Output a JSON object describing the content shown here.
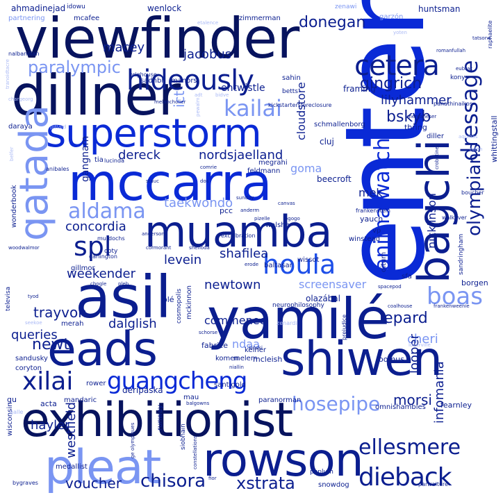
{
  "words": {
    "enten": "enten",
    "viewfinder": "viewfinder",
    "dillner": "dillner",
    "superstorm": "superstorm",
    "mccarra": "mccarra",
    "muamba": "muamba",
    "asil": "asil",
    "yamile": "yamilé",
    "eads": "eads",
    "shiwen": "shiwen",
    "exhibitionist": "exhibitionist",
    "rowson": "rowson",
    "pleat": "pleat",
    "qatada": "qatada",
    "bagchi": "bagchi",
    "hideously": "hideously",
    "cetera": "cetera",
    "dressage": "dressage",
    "olympians": "olympians",
    "animalwatch": "animalwatch",
    "houla": "houla",
    "boas": "boas",
    "guangcheng": "guangcheng",
    "xilai": "xilai",
    "dieback": "dieback",
    "ellesmere": "ellesmere",
    "chisora": "chisora",
    "voucher": "voucher",
    "xstrata": "xstrata",
    "hosepipe": "hosepipe",
    "spl": "spl",
    "aldama": "aldama",
    "kailai": "kailai",
    "paralympic": "paralympic",
    "donegan": "donegan",
    "gingrich": "gingrich",
    "lilyhammer": "lilyhammer",
    "bskyb": "bskyb",
    "macey": "macey",
    "jacobus": "jacobus",
    "nordsjaelland": "nordsjaelland",
    "dereck": "dereck",
    "goma": "goma",
    "taekwondo": "taekwondo",
    "concordia": "concordia",
    "levein": "levein",
    "shafilea": "shafilea",
    "weekender": "weekender",
    "newtown": "newtown",
    "trayvon": "trayvon",
    "dalglish": "dalglish",
    "commonee": "commenee",
    "lepard": "lepard",
    "screensaver": "screensaver",
    "cheri": "cheri",
    "looper": "looper",
    "newt": "newt",
    "queries": "queries",
    "ndaa": "ndaa",
    "morsi": "morsi",
    "infomania": "infomania",
    "hayler": "hayler",
    "westfield": "westfield",
    "cloudstore": "cloudstore",
    "nicklinson": "nicklinson",
    "mek": "mek",
    "entwistle": "entwistle",
    "ict": "ict",
    "gangnam": "gangnam",
    "huntsman": "huntsman",
    "framing": "framing",
    "ahmadinejad": "ahmadinejad",
    "idowu": "idowu",
    "wenlock": "wenlock",
    "mcafee": "mcafee",
    "zimmerman": "zimmerman",
    "garzon": "garzón",
    "zenawi": "zenawi",
    "partnering": "partnering",
    "sahin": "sahin",
    "betts": "betts",
    "sadhbh": "sadhbh",
    "manors": "manors",
    "brighouse": "brighouse",
    "schmallenborg": "schmallenborg",
    "cluj": "cluj",
    "beecroft": "beecroft",
    "feldmann": "feldmann",
    "megrahi": "megrahi",
    "thring": "thring",
    "diller": "diller",
    "kony": "kony",
    "whittingstall": "whittingstall",
    "daraya": "daraya",
    "tia": "tia",
    "vp": "vp",
    "yauch": "yauch",
    "walshe": "walshe",
    "winstead": "winstead",
    "ditum": "ditum",
    "sandringham": "sandringham",
    "sfa": "sfa",
    "borgen": "borgen",
    "wissot": "wissot",
    "baltasar": "baltasar",
    "olazabal": "olazábal",
    "kelner": "kelner",
    "fabrice": "fabrice",
    "mcleish": "mcleish",
    "melem": "melem",
    "komen": "komen",
    "rower": "rower",
    "loomus": "loomus",
    "pcc": "pcc",
    "merah": "merah",
    "gillmor": "gillmor",
    "coty": "coty",
    "sandusky": "sandusky",
    "coryton": "coryton",
    "deripaska": "deripaska",
    "mandaric": "mandaric",
    "mau": "mau",
    "santigold": "santigold",
    "acta": "acta",
    "gu": "gu",
    "fearnley": "fearnley",
    "omnishambles": "omnishambles",
    "paranorman": "paranorman",
    "medallist": "medallist",
    "runway": "runway",
    "snowdog": "snowdog",
    "wisconsin": "wisconsin",
    "televisa": "televisa",
    "wonderbook": "wonderbook",
    "bygraves": "bygraves",
    "partraiture": "partraiture",
    "peplum": "peplum",
    "nicholas": "siobhain",
    "cosmopolis": "cosmopolis",
    "mckinnon": "mckinnon",
    "neurophilosophy": "neurophilosophy",
    "olé": "olé",
    "kickstarter": "kickstartersforeclosure",
    "panathinaikos": "panathinaikos",
    "murdochs": "murdochs",
    "darlington": "darlington",
    "sgabc": "boucher",
    "walkover": "walkover",
    "frankenstein": "frankenstein",
    "zenardi": "zenardi",
    "anibales": "anibales",
    "lucinda": "lucinda",
    "tiny1": "etalence",
    "tiny2": "bidve",
    "tiny3": "adt",
    "tiny4": "yoten",
    "tiny5": "merganeser",
    "tiny6": "raphaelite",
    "tiny7": "galle",
    "tiny8": "pizelle",
    "tiny9": "ogogo",
    "tiny10": "excelbration",
    "tiny11": "belfer",
    "tiny12": "woodwalmor",
    "tiny13": "chogle",
    "tiny14": "pleb",
    "tiny15": "cormorant",
    "tiny16": "shenoda",
    "tiny17": "erode",
    "tiny18": "spacepod",
    "tiny19": "coalhouse",
    "tiny20": "frankenweenie",
    "tiny21": "loverville",
    "tiny22": "tyod",
    "tiny23": "seekoe",
    "tiny24": "schorse",
    "tiny25": "kioski",
    "tiny26": "niallin",
    "tiny27": "constellations",
    "tiny28": "fior",
    "tiny29": "balgowns",
    "tiny30": "ge olympiques",
    "tiny31": "aquinas",
    "tiny32": "rafen",
    "tiny33": "crobotine",
    "tiny34": "comrie",
    "tiny35": "romanfullah",
    "tiny36": "eubrac",
    "tiny37": "tatsone",
    "tiny38": "nalbandian",
    "tiny39": "pittard",
    "tiny40": "melancholier",
    "tiny41": "pewalm",
    "tiny42": "chargeorg",
    "tiny43": "anderson",
    "tiny44": "tranoidtacre",
    "tiny45": "dos",
    "tiny46": "prejudice",
    "tiny47": "stauc",
    "tiny48": "sunday",
    "tiny49": "anderm",
    "tiny50": "canvas"
  }
}
